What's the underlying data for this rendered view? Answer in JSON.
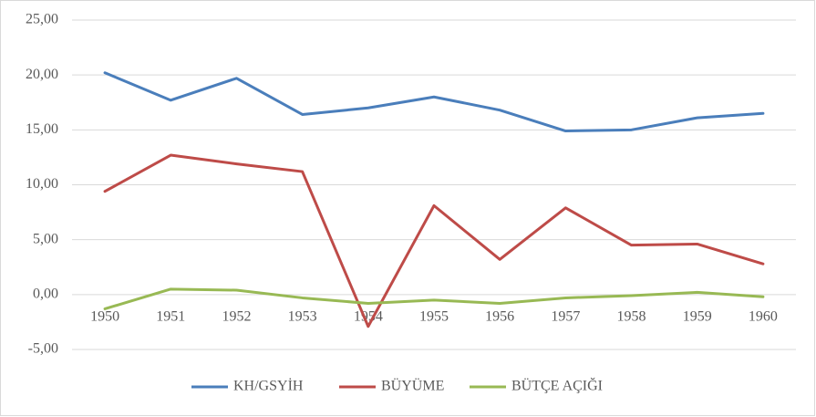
{
  "chart_data": {
    "type": "line",
    "categories": [
      "1950",
      "1951",
      "1952",
      "1953",
      "1954",
      "1955",
      "1956",
      "1957",
      "1958",
      "1959",
      "1960"
    ],
    "series": [
      {
        "name": "KH/GSYİH",
        "color": "#4a7ebb",
        "values": [
          20.2,
          17.7,
          19.7,
          16.4,
          17.0,
          18.0,
          16.8,
          14.9,
          15.0,
          16.1,
          16.5
        ]
      },
      {
        "name": "BÜYÜME",
        "color": "#be4b48",
        "values": [
          9.4,
          12.7,
          11.9,
          11.2,
          -2.9,
          8.1,
          3.2,
          7.9,
          4.5,
          4.6,
          2.8
        ]
      },
      {
        "name": "BÜTÇE AÇIĞI",
        "color": "#98b954",
        "values": [
          -1.3,
          0.5,
          0.4,
          -0.3,
          -0.8,
          -0.5,
          -0.8,
          -0.3,
          -0.1,
          0.2,
          -0.2
        ]
      }
    ],
    "ylim": [
      -5,
      25
    ],
    "yticks": [
      {
        "value": -5,
        "label": "-5,00"
      },
      {
        "value": 0,
        "label": "0,00"
      },
      {
        "value": 5,
        "label": "5,00"
      },
      {
        "value": 10,
        "label": "10,00"
      },
      {
        "value": 15,
        "label": "15,00"
      },
      {
        "value": 20,
        "label": "20,00"
      },
      {
        "value": 25,
        "label": "25,00"
      }
    ],
    "grid": true,
    "legend": "bottom"
  }
}
